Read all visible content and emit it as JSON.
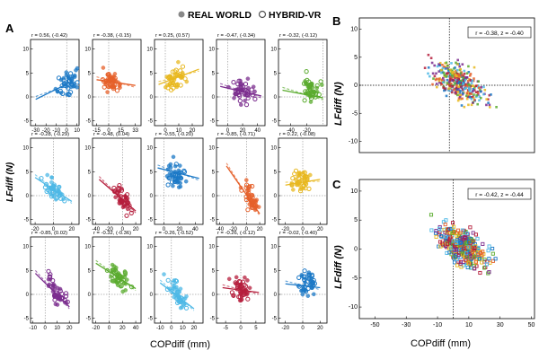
{
  "figure": {
    "legend": {
      "real_label": "REAL WORLD",
      "hybrid_label": "HYBRID-VR"
    },
    "panel_labels": {
      "a": "A",
      "b": "B",
      "c": "C"
    },
    "small_ylabel": "LFdiff (N)",
    "small_xlabel": "COPdiff (mm)",
    "big_ylabel": "LFdiff (N)",
    "big_xlabel": "COPdiff (mm)"
  },
  "chart_data": [
    {
      "type": "scatter",
      "panel": "A",
      "row": 0,
      "col": 0,
      "color": "#1b78c6",
      "annotation": "r = 0.56, (-0.42)",
      "xticks": [
        "-30",
        "-20",
        "-10",
        "0",
        "10"
      ],
      "yticks": [
        "10",
        "5",
        "0",
        "-5"
      ],
      "xlim": [
        -35,
        12
      ],
      "ylim": [
        -6,
        12
      ],
      "fit": [
        [
          -30,
          -0.5
        ],
        [
          5,
          3.2
        ]
      ],
      "cluster": [
        2,
        3
      ]
    },
    {
      "type": "scatter",
      "panel": "A",
      "row": 0,
      "col": 1,
      "color": "#e5602a",
      "annotation": "r = -0.38, (-0.15)",
      "xticks": [
        "-15",
        "0",
        "15",
        "33"
      ],
      "yticks": [
        "10",
        "5",
        "0",
        "-5"
      ],
      "xlim": [
        -20,
        40
      ],
      "ylim": [
        -6,
        12
      ],
      "fit": [
        [
          -15,
          3.6
        ],
        [
          33,
          2.4
        ]
      ],
      "cluster": [
        5,
        3
      ]
    },
    {
      "type": "scatter",
      "panel": "A",
      "row": 0,
      "col": 2,
      "color": "#e8b820",
      "annotation": "r = 0.25, (0.57)",
      "xticks": [
        "0",
        "10",
        "20"
      ],
      "yticks": [
        "10",
        "5",
        "0",
        "-5"
      ],
      "xlim": [
        -8,
        28
      ],
      "ylim": [
        -6,
        12
      ],
      "fit": [
        [
          -5,
          2.6
        ],
        [
          25,
          5.8
        ]
      ],
      "cluster": [
        8,
        4
      ]
    },
    {
      "type": "scatter",
      "panel": "A",
      "row": 0,
      "col": 3,
      "color": "#7b2d8e",
      "annotation": "r = -0.47, (-0.34)",
      "xticks": [
        "0",
        "20",
        "40"
      ],
      "yticks": [
        "10",
        "5",
        "0",
        "-5"
      ],
      "xlim": [
        -15,
        50
      ],
      "ylim": [
        -6,
        12
      ],
      "fit": [
        [
          -10,
          2.2
        ],
        [
          45,
          0.2
        ]
      ],
      "cluster": [
        20,
        1
      ]
    },
    {
      "type": "scatter",
      "panel": "A",
      "row": 0,
      "col": 4,
      "color": "#5aab2e",
      "annotation": "r = -0.32, (-0.12)",
      "xticks": [
        "-40",
        "-20"
      ],
      "yticks": [
        "10",
        "5",
        "0",
        "-5"
      ],
      "xlim": [
        -55,
        5
      ],
      "ylim": [
        -6,
        12
      ],
      "fit": [
        [
          -50,
          1.4
        ],
        [
          0,
          -0.2
        ]
      ],
      "cluster": [
        -15,
        3
      ]
    },
    {
      "type": "scatter",
      "panel": "A",
      "row": 1,
      "col": 0,
      "color": "#4db8e6",
      "annotation": "r = -0.28, (-0.29)",
      "xticks": [
        "-20",
        "0",
        "20"
      ],
      "yticks": [
        "10",
        "5",
        "0",
        "-5"
      ],
      "xlim": [
        -25,
        28
      ],
      "ylim": [
        -6,
        12
      ],
      "fit": [
        [
          -20,
          3.8
        ],
        [
          20,
          -1.2
        ]
      ],
      "cluster": [
        0,
        1
      ]
    },
    {
      "type": "scatter",
      "panel": "A",
      "row": 1,
      "col": 1,
      "color": "#b51e3c",
      "annotation": "r = -0.48, (0.04)",
      "xticks": [
        "-40",
        "-20",
        "0",
        "20"
      ],
      "yticks": [
        "10",
        "5",
        "0",
        "-5"
      ],
      "xlim": [
        -45,
        28
      ],
      "ylim": [
        -6,
        12
      ],
      "fit": [
        [
          -35,
          3.4
        ],
        [
          20,
          -3.2
        ]
      ],
      "cluster": [
        0,
        0
      ]
    },
    {
      "type": "scatter",
      "panel": "A",
      "row": 1,
      "col": 2,
      "color": "#1b78c6",
      "annotation": "r = -0.55, (-0.20)",
      "xticks": [
        "0",
        "20",
        "40"
      ],
      "yticks": [
        "10",
        "5",
        "0",
        "-5"
      ],
      "xlim": [
        -12,
        50
      ],
      "ylim": [
        -6,
        12
      ],
      "fit": [
        [
          -8,
          5.8
        ],
        [
          45,
          3.6
        ]
      ],
      "cluster": [
        15,
        4
      ]
    },
    {
      "type": "scatter",
      "panel": "A",
      "row": 1,
      "col": 3,
      "color": "#e5602a",
      "annotation": "r = -0.85, (-0.71)",
      "xticks": [
        "-40",
        "-20",
        "0",
        "20"
      ],
      "yticks": [
        "10",
        "5",
        "0",
        "-5"
      ],
      "xlim": [
        -45,
        28
      ],
      "ylim": [
        -6,
        12
      ],
      "fit": [
        [
          -30,
          6.2
        ],
        [
          20,
          -3.8
        ]
      ],
      "cluster": [
        5,
        0
      ]
    },
    {
      "type": "scatter",
      "panel": "A",
      "row": 1,
      "col": 4,
      "color": "#e8b820",
      "annotation": "r = 0.22, (-0.08)",
      "xticks": [
        "-20",
        "0",
        "20"
      ],
      "yticks": [
        "10",
        "5",
        "0",
        "-5"
      ],
      "xlim": [
        -28,
        28
      ],
      "ylim": [
        -6,
        12
      ],
      "fit": [
        [
          -20,
          2.2
        ],
        [
          20,
          3.4
        ]
      ],
      "cluster": [
        0,
        3
      ]
    },
    {
      "type": "scatter",
      "panel": "A",
      "row": 2,
      "col": 0,
      "color": "#7b2d8e",
      "annotation": "r = -0.85, (0.02)",
      "xticks": [
        "-10",
        "0",
        "10",
        "20"
      ],
      "yticks": [
        "10",
        "5",
        "0",
        "-5"
      ],
      "xlim": [
        -12,
        28
      ],
      "ylim": [
        -6,
        12
      ],
      "fit": [
        [
          -8,
          4.4
        ],
        [
          20,
          -2.6
        ]
      ],
      "cluster": [
        10,
        1
      ]
    },
    {
      "type": "scatter",
      "panel": "A",
      "row": 2,
      "col": 1,
      "color": "#5aab2e",
      "annotation": "r = -0.32, (-0.36)",
      "xticks": [
        "-20",
        "0",
        "20",
        "40"
      ],
      "yticks": [
        "10",
        "5",
        "0",
        "-5"
      ],
      "xlim": [
        -25,
        48
      ],
      "ylim": [
        -6,
        12
      ],
      "fit": [
        [
          -20,
          6.5
        ],
        [
          40,
          1.2
        ]
      ],
      "cluster": [
        15,
        3
      ]
    },
    {
      "type": "scatter",
      "panel": "A",
      "row": 2,
      "col": 2,
      "color": "#4db8e6",
      "annotation": "r = -0.26, (-0.52)",
      "xticks": [
        "-10",
        "0",
        "10",
        "20"
      ],
      "yticks": [
        "10",
        "5",
        "0",
        "-5"
      ],
      "xlim": [
        -15,
        28
      ],
      "ylim": [
        -6,
        12
      ],
      "fit": [
        [
          -10,
          2.4
        ],
        [
          20,
          -3.0
        ]
      ],
      "cluster": [
        5,
        0
      ]
    },
    {
      "type": "scatter",
      "panel": "A",
      "row": 2,
      "col": 3,
      "color": "#b51e3c",
      "annotation": "r = -0.26, (-0.12)",
      "xticks": [
        "-5",
        "0",
        "5"
      ],
      "yticks": [
        "10",
        "5",
        "0",
        "-5"
      ],
      "xlim": [
        -8,
        8
      ],
      "ylim": [
        -6,
        12
      ],
      "fit": [
        [
          -6,
          1.4
        ],
        [
          6,
          0.4
        ]
      ],
      "cluster": [
        0,
        1
      ]
    },
    {
      "type": "scatter",
      "panel": "A",
      "row": 2,
      "col": 4,
      "color": "#1b78c6",
      "annotation": "r = -0.02, (-0.40)",
      "xticks": [
        "-20",
        "0",
        "20"
      ],
      "yticks": [
        "10",
        "5",
        "0",
        "-5"
      ],
      "xlim": [
        -28,
        28
      ],
      "ylim": [
        -6,
        12
      ],
      "fit": [
        [
          -20,
          2.2
        ],
        [
          20,
          1.4
        ]
      ],
      "cluster": [
        5,
        3
      ]
    },
    {
      "type": "scatter",
      "panel": "B",
      "annotation": "r = -0.38, z = -0.40",
      "xticks": [],
      "yticks": [
        "10",
        "5",
        "0",
        "-5",
        "-10"
      ],
      "xlim": [
        -55,
        52
      ],
      "ylim": [
        -12,
        12
      ],
      "refline_x": 0,
      "refline_y": 0
    },
    {
      "type": "scatter",
      "panel": "C",
      "annotation": "r = -0.42, z = -0.44",
      "xticks": [
        "-50",
        "-30",
        "-10",
        "10",
        "30",
        "50"
      ],
      "yticks": [
        "10",
        "5",
        "0",
        "-5",
        "-10"
      ],
      "xlim": [
        -60,
        52
      ],
      "ylim": [
        -12,
        12
      ],
      "refline_x": 0
    }
  ]
}
